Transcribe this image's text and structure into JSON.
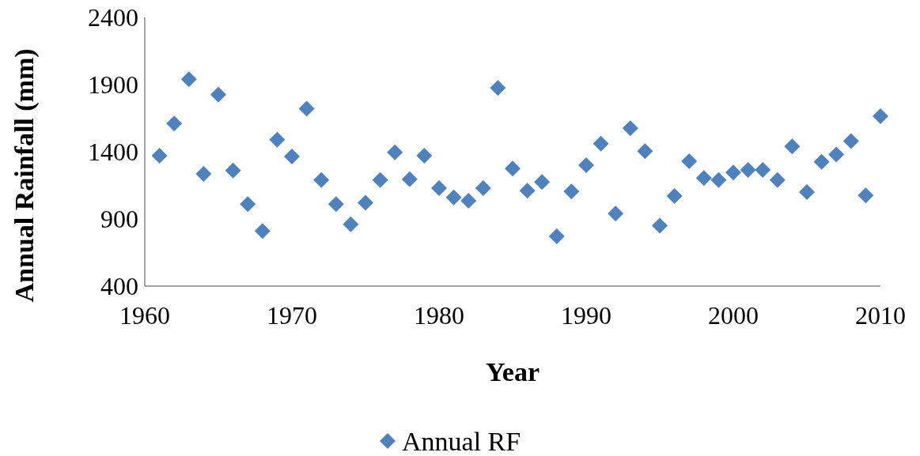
{
  "chart_data": {
    "type": "scatter",
    "xlabel": "Year",
    "ylabel": "Annual Rainfall (mm)",
    "xlim": [
      1960,
      2010
    ],
    "xticks": [
      1960,
      1970,
      1980,
      1990,
      2000,
      2010
    ],
    "ylim": [
      400,
      2400
    ],
    "yticks": [
      400,
      900,
      1400,
      1900,
      2400
    ],
    "grid": false,
    "legend": "bottom",
    "marker": "diamond",
    "x": [
      1961,
      1962,
      1963,
      1964,
      1965,
      1966,
      1967,
      1968,
      1969,
      1970,
      1971,
      1972,
      1973,
      1974,
      1975,
      1976,
      1977,
      1978,
      1979,
      1980,
      1981,
      1982,
      1983,
      1984,
      1985,
      1986,
      1987,
      1988,
      1989,
      1990,
      1991,
      1992,
      1993,
      1994,
      1995,
      1996,
      1997,
      1998,
      1999,
      2000,
      2001,
      2002,
      2003,
      2004,
      2005,
      2006,
      2007,
      2008,
      2009,
      2010
    ],
    "series": [
      {
        "name": "Annual RF",
        "color": "#4f81bd",
        "values": [
          1370,
          1610,
          1940,
          1235,
          1825,
          1260,
          1010,
          810,
          1490,
          1365,
          1720,
          1190,
          1010,
          860,
          1020,
          1190,
          1395,
          1195,
          1370,
          1130,
          1060,
          1035,
          1130,
          1875,
          1275,
          1110,
          1175,
          770,
          1105,
          1300,
          1460,
          940,
          1575,
          1405,
          850,
          1070,
          1330,
          1205,
          1190,
          1245,
          1265,
          1265,
          1190,
          1440,
          1100,
          1325,
          1380,
          1480,
          1075,
          1665
        ]
      }
    ]
  }
}
